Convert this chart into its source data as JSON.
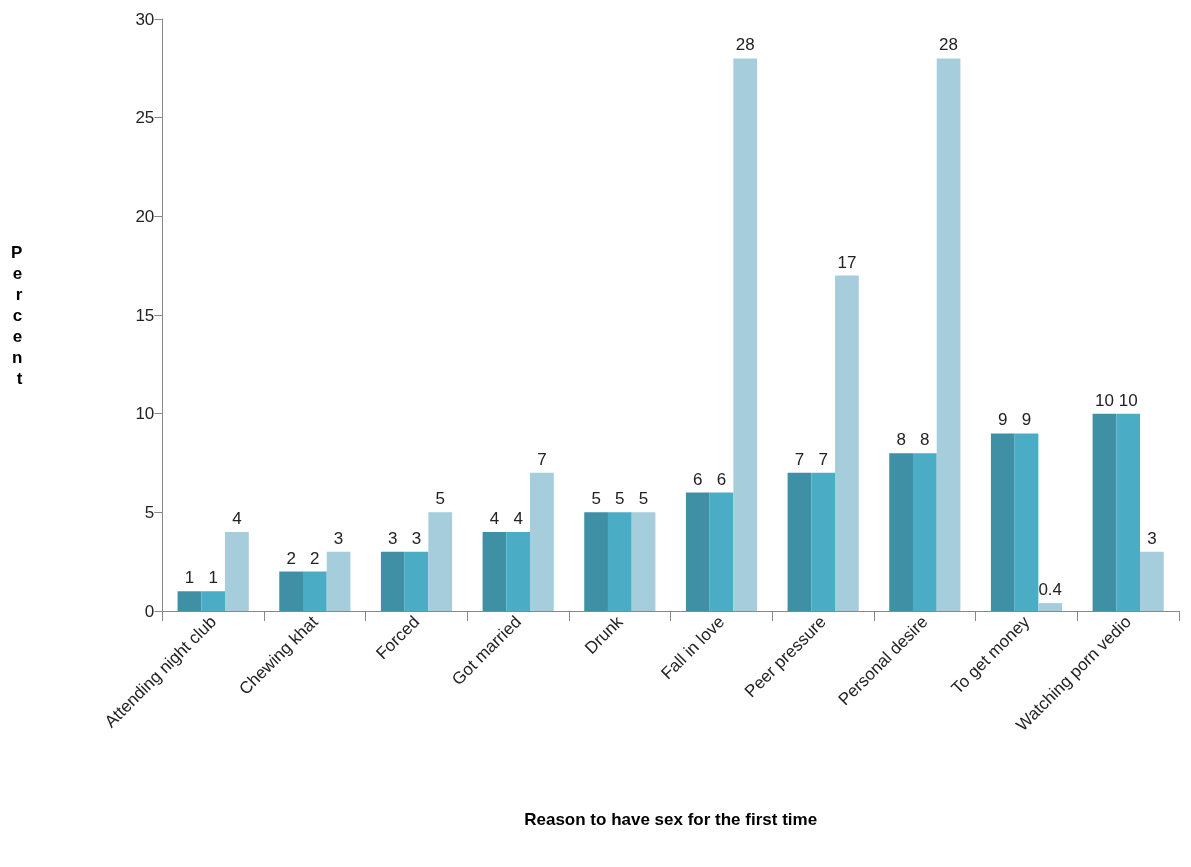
{
  "chart_data": {
    "type": "bar",
    "xlabel": "Reason to have sex for the first time",
    "ylabel": "Percent",
    "categories": [
      "Attending night club",
      "Chewing khat",
      "Forced",
      "Got married",
      "Drunk",
      "Fall in love",
      "Peer pressure",
      "Personal desire",
      "To get money",
      "Watching porn vedio"
    ],
    "series": [
      {
        "color": "#3f8fa5",
        "values": [
          1,
          2,
          3,
          4,
          5,
          6,
          7,
          8,
          9,
          10
        ]
      },
      {
        "color": "#4bacc6",
        "values": [
          1,
          2,
          3,
          4,
          5,
          6,
          7,
          8,
          9,
          10
        ]
      },
      {
        "color": "#a5cddb",
        "values": [
          4,
          3,
          5,
          7,
          5,
          28,
          17,
          28,
          0.4,
          3
        ]
      }
    ],
    "ylim": [
      0,
      30
    ],
    "yticks": [
      0,
      5,
      10,
      15,
      20,
      25,
      30
    ],
    "grid": false,
    "data_labels": true
  }
}
